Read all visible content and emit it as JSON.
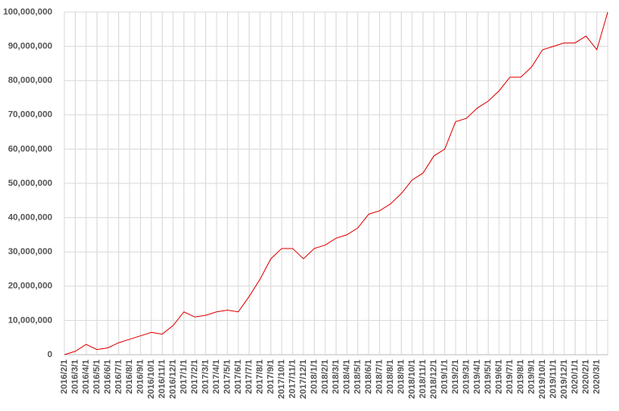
{
  "chart_data": {
    "type": "line",
    "categories": [
      "2016/2/1",
      "2016/3/1",
      "2016/4/1",
      "2016/5/1",
      "2016/6/1",
      "2016/7/1",
      "2016/8/1",
      "2016/9/1",
      "2016/10/1",
      "2016/11/1",
      "2016/12/1",
      "2017/1/1",
      "2017/2/1",
      "2017/3/1",
      "2017/4/1",
      "2017/5/1",
      "2017/6/1",
      "2017/7/1",
      "2017/8/1",
      "2017/9/1",
      "2017/10/1",
      "2017/11/1",
      "2017/12/1",
      "2018/1/1",
      "2018/2/1",
      "2018/3/1",
      "2018/4/1",
      "2018/5/1",
      "2018/6/1",
      "2018/7/1",
      "2018/8/1",
      "2018/9/1",
      "2018/10/1",
      "2018/11/1",
      "2018/12/1",
      "2019/1/1",
      "2019/2/1",
      "2019/3/1",
      "2019/4/1",
      "2019/5/1",
      "2019/6/1",
      "2019/7/1",
      "2019/8/1",
      "2019/9/1",
      "2019/10/1",
      "2019/11/1",
      "2019/12/1",
      "2020/1/1",
      "2020/2/1",
      "2020/3/1",
      null
    ],
    "series": [
      {
        "color": "#e00000",
        "values": [
          0,
          1000000,
          3000000,
          1500000,
          2000000,
          3500000,
          4500000,
          5500000,
          6500000,
          6000000,
          8500000,
          12500000,
          11000000,
          11500000,
          12500000,
          13000000,
          12500000,
          17000000,
          22000000,
          28000000,
          31000000,
          31000000,
          28000000,
          31000000,
          32000000,
          34000000,
          35000000,
          37000000,
          41000000,
          42000000,
          44000000,
          47000000,
          51000000,
          53000000,
          58000000,
          60000000,
          68000000,
          69000000,
          72000000,
          74000000,
          77000000,
          81000000,
          81000000,
          84000000,
          89000000,
          90000000,
          91000000,
          91000000,
          93000000,
          89000000,
          100000000
        ]
      }
    ],
    "ylim": [
      0,
      100000000
    ],
    "yticks": [
      0,
      {
        "value": 10000000,
        "label": "10,000,000"
      },
      {
        "value": 20000000,
        "label": "20,000,000"
      },
      {
        "value": 30000000,
        "label": "30,000,000"
      },
      {
        "value": 40000000,
        "label": "40,000,000"
      },
      {
        "value": 50000000,
        "label": "50,000,000"
      },
      {
        "value": 60000000,
        "label": "60,000,000"
      },
      {
        "value": 70000000,
        "label": "70,000,000"
      },
      {
        "value": 80000000,
        "label": "80,000,000"
      },
      {
        "value": 90000000,
        "label": "90,000,000"
      },
      {
        "value": 100000000,
        "label": "100,000,000"
      }
    ],
    "grid": true
  }
}
